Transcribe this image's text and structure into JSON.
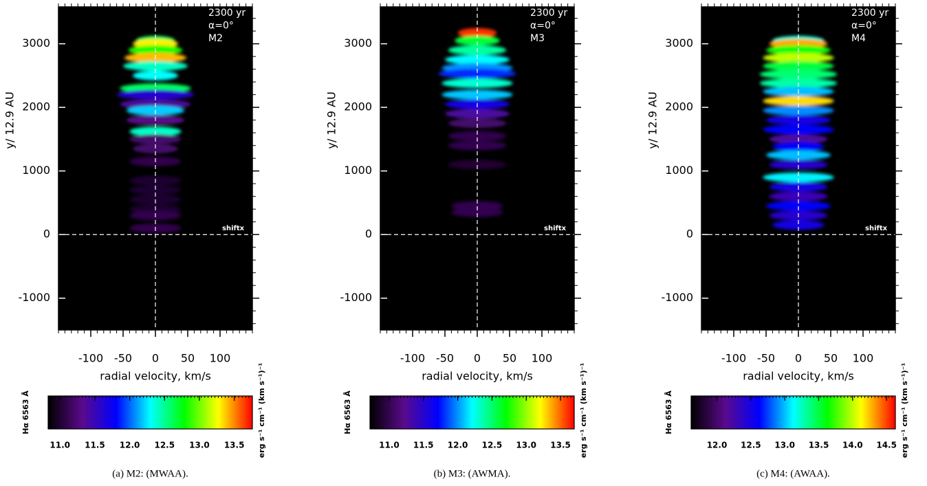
{
  "chart_data": [
    {
      "type": "heatmap",
      "annotations": [
        "2300 yr",
        "α=0°",
        "M2"
      ],
      "marker_label": "shiftx",
      "ylabel": "y/ 12.9 AU",
      "xlabel": "radial velocity, km/s",
      "xlim": [
        -150,
        150
      ],
      "xticks": [
        -100,
        -50,
        0,
        50,
        100
      ],
      "ylim": [
        -1500,
        3580
      ],
      "yticks": [
        -1000,
        0,
        1000,
        2000,
        3000
      ],
      "y": [
        3050,
        3000,
        2900,
        2780,
        2650,
        2500,
        2300,
        2200,
        2050,
        1950,
        1800,
        1620,
        1500,
        1350,
        1150,
        850,
        700,
        550,
        400,
        300,
        100
      ],
      "halfwidth": [
        30,
        35,
        42,
        48,
        50,
        35,
        55,
        60,
        55,
        45,
        45,
        40,
        40,
        35,
        40,
        40,
        40,
        40,
        40,
        40,
        40
      ],
      "values": [
        12.6,
        13.3,
        12.8,
        13.4,
        12.4,
        12.3,
        12.6,
        11.6,
        11.4,
        12.2,
        11.3,
        12.4,
        11.2,
        11.2,
        11.1,
        11.0,
        11.0,
        11.0,
        11.0,
        11.1,
        11.1
      ],
      "colorbar_label": "Hα 6563 Å",
      "colorbar_units": "erg s⁻¹ cm⁻¹ (km s⁻¹)⁻¹",
      "clim": [
        10.83,
        13.76
      ],
      "cticks": [
        {
          "value": 11,
          "label": "11.0"
        },
        {
          "value": 11.5,
          "label": "11.5"
        },
        {
          "value": 12,
          "label": "12.0"
        },
        {
          "value": 12.5,
          "label": "12.5"
        },
        {
          "value": 13,
          "label": "13.0"
        },
        {
          "value": 13.5,
          "label": "13.5"
        }
      ],
      "colormap": [
        "#000000",
        "#5a0a8c",
        "#0000ff",
        "#00ffff",
        "#00ff00",
        "#ffff00",
        "#ff0000"
      ],
      "caption": "(a) M2: (MWAA)."
    },
    {
      "type": "heatmap",
      "annotations": [
        "2300 yr",
        "α=0°",
        "M3"
      ],
      "marker_label": "shiftx",
      "ylabel": "y/ 12.9 AU",
      "xlabel": "radial velocity, km/s",
      "xlim": [
        -150,
        150
      ],
      "xticks": [
        -100,
        -50,
        0,
        50,
        100
      ],
      "ylim": [
        -1500,
        3580
      ],
      "yticks": [
        -1000,
        0,
        1000,
        2000,
        3000
      ],
      "y": [
        3170,
        3050,
        2900,
        2750,
        2620,
        2530,
        2380,
        2200,
        2050,
        1900,
        1750,
        1550,
        1400,
        1100,
        450,
        350
      ],
      "halfwidth": [
        30,
        35,
        45,
        50,
        55,
        60,
        55,
        55,
        50,
        50,
        45,
        45,
        45,
        45,
        40,
        40
      ],
      "values": [
        13.6,
        12.6,
        12.4,
        12.2,
        12.0,
        11.8,
        12.3,
        12.1,
        11.6,
        11.3,
        11.1,
        11.0,
        11.0,
        10.9,
        11.0,
        11.0
      ],
      "colorbar_label": "Hα 6563 Å",
      "colorbar_units": "erg s⁻¹ cm⁻¹ (km s⁻¹)⁻¹",
      "clim": [
        10.72,
        13.7
      ],
      "cticks": [
        {
          "value": 11,
          "label": "11.0"
        },
        {
          "value": 11.5,
          "label": "11.5"
        },
        {
          "value": 12,
          "label": "12.0"
        },
        {
          "value": 12.5,
          "label": "12.5"
        },
        {
          "value": 13,
          "label": "13.0"
        },
        {
          "value": 13.5,
          "label": "13.5"
        }
      ],
      "colormap": [
        "#000000",
        "#5a0a8c",
        "#0000ff",
        "#00ffff",
        "#00ff00",
        "#ffff00",
        "#ff0000"
      ],
      "caption": "(b) M3: (AWMA)."
    },
    {
      "type": "heatmap",
      "annotations": [
        "2300 yr",
        "α=0°",
        "M4"
      ],
      "marker_label": "shiftx",
      "ylabel": "y/ 12.9 AU",
      "xlabel": "radial velocity, km/s",
      "xlim": [
        -150,
        150
      ],
      "xticks": [
        -100,
        -50,
        0,
        50,
        100
      ],
      "ylim": [
        -1500,
        3580
      ],
      "yticks": [
        -1000,
        0,
        1000,
        2000,
        3000
      ],
      "y": [
        3050,
        3000,
        2900,
        2780,
        2650,
        2520,
        2380,
        2250,
        2100,
        1950,
        1800,
        1650,
        1500,
        1380,
        1250,
        1100,
        900,
        750,
        600,
        450,
        300,
        150
      ],
      "halfwidth": [
        40,
        45,
        50,
        55,
        55,
        60,
        60,
        55,
        55,
        55,
        50,
        55,
        45,
        40,
        50,
        45,
        55,
        45,
        45,
        50,
        45,
        40
      ],
      "values": [
        13.2,
        14.3,
        13.6,
        14.0,
        13.5,
        13.4,
        13.3,
        13.0,
        14.2,
        12.9,
        12.5,
        12.6,
        12.2,
        12.6,
        13.0,
        12.4,
        13.1,
        12.5,
        12.3,
        12.6,
        12.4,
        12.5
      ],
      "colorbar_label": "Hα 6563 Å",
      "colorbar_units": "erg s⁻¹ cm⁻¹ (km s⁻¹)⁻¹",
      "clim": [
        11.62,
        14.63
      ],
      "cticks": [
        {
          "value": 12,
          "label": "12.0"
        },
        {
          "value": 12.5,
          "label": "12.5"
        },
        {
          "value": 13,
          "label": "13.0"
        },
        {
          "value": 13.5,
          "label": "13.5"
        },
        {
          "value": 14,
          "label": "14.0"
        },
        {
          "value": 14.5,
          "label": "14.5"
        }
      ],
      "colormap": [
        "#000000",
        "#5a0a8c",
        "#0000ff",
        "#00ffff",
        "#00ff00",
        "#ffff00",
        "#ff0000"
      ],
      "caption": "(c) M4: (AWAA)."
    }
  ]
}
